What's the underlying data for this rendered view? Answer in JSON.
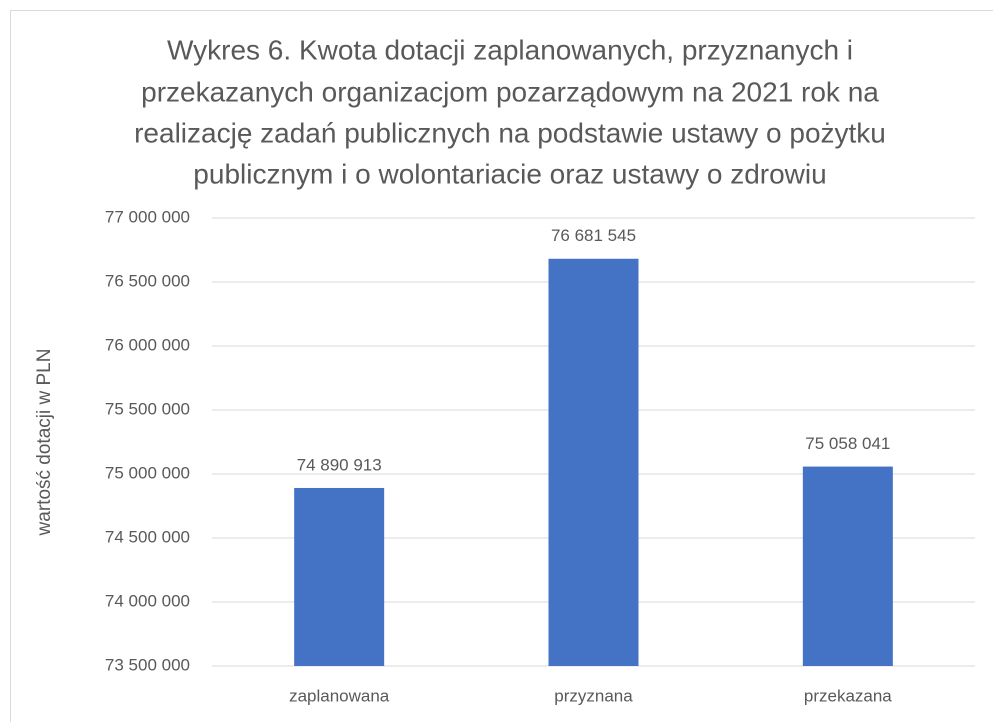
{
  "chart_data": {
    "type": "bar",
    "title": [
      "Wykres 6. Kwota dotacji zaplanowanych, przyznanych i",
      "przekazanych organizacjom pozarządowym na 2021 rok na",
      "realizację zadań publicznych na podstawie ustawy o pożytku",
      "publicznym i o wolontariacie oraz ustawy o zdrowiu"
    ],
    "y_label": "wartość dotacji w PLN",
    "categories": [
      "zaplanowana",
      "przyznana",
      "przekazana"
    ],
    "values": [
      74890913,
      76681545,
      75058041
    ],
    "value_labels": [
      "74 890 913",
      "76 681 545",
      "75 058 041"
    ],
    "color": "#4472c4",
    "ylim": [
      73500000,
      77000000
    ],
    "yticks": [
      {
        "value": 73500000,
        "label": "73 500 000"
      },
      {
        "value": 74000000,
        "label": "74 000 000"
      },
      {
        "value": 74500000,
        "label": "74 500 000"
      },
      {
        "value": 75000000,
        "label": "75 000 000"
      },
      {
        "value": 75500000,
        "label": "75 500 000"
      },
      {
        "value": 76000000,
        "label": "76 000 000"
      },
      {
        "value": 76500000,
        "label": "76 500 000"
      },
      {
        "value": 77000000,
        "label": "77 000 000"
      }
    ],
    "grid": true
  }
}
